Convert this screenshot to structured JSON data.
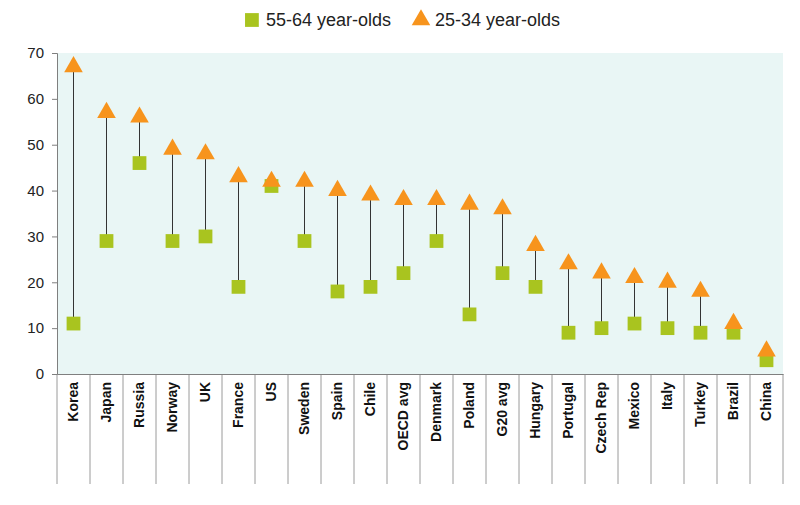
{
  "chart_data": {
    "type": "dumbbell",
    "categories": [
      "Korea",
      "Japan",
      "Russia",
      "Norway",
      "UK",
      "France",
      "US",
      "Sweden",
      "Spain",
      "Chile",
      "OECD avg",
      "Denmark",
      "Poland",
      "G20 avg",
      "Hungary",
      "Portugal",
      "Czech Rep",
      "Mexico",
      "Italy",
      "Turkey",
      "Brazil",
      "China"
    ],
    "series": [
      {
        "name": "55-64 year-olds",
        "color": "#a9c41f",
        "marker": "square",
        "values": [
          11,
          29,
          46,
          29,
          30,
          19,
          41,
          29,
          18,
          19,
          22,
          29,
          13,
          22,
          19,
          9,
          10,
          11,
          10,
          9,
          9,
          3
        ]
      },
      {
        "name": "25-34 year-olds",
        "color": "#f7941d",
        "marker": "triangle",
        "values": [
          67,
          57,
          56,
          49,
          48,
          43,
          42,
          42,
          40,
          39,
          38,
          38,
          37,
          36,
          28,
          24,
          22,
          21,
          20,
          18,
          11,
          5
        ]
      }
    ],
    "ylim": [
      0,
      70
    ],
    "yticks": [
      0,
      10,
      20,
      30,
      40,
      50,
      60,
      70
    ],
    "grid": false,
    "legend": "top"
  }
}
